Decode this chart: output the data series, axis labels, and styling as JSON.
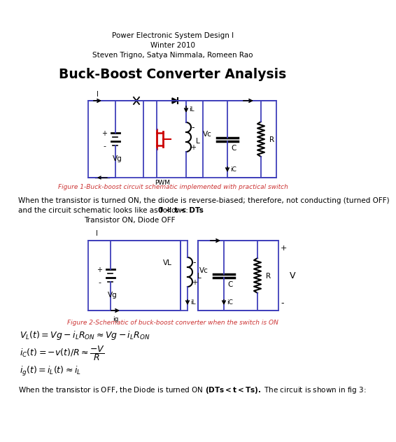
{
  "title_line1": "Power Electronic System Design I",
  "title_line2": "Winter 2010",
  "title_line3": "Steven Trigno, Satya Nimmala, Romeen Rao",
  "main_title": "Buck-Boost Converter Analysis",
  "fig1_caption": "Figure 1-Buck-boost circuit schematic implemented with practical switch",
  "fig2_caption": "Figure 2-Schematic of buck-boost converter when the switch is ON",
  "transistor_label": "Transistor ON, Diode OFF",
  "body_text1": "When the transistor is turned ON, the diode is reverse-biased; therefore, not conducting (turned OFF)",
  "body_text2_normal": "and the circuit schematic looks like as follows: ",
  "body_text2_bold": "0 < t < DTs",
  "bottom_text_normal": "When the transistor is OFF, the Diode is turned ON ",
  "bottom_text_bold": "(DTs < t < Ts).",
  "bottom_text_end": " The circuit is shown in fig 3:",
  "bg_color": "#ffffff",
  "circuit_color": "#4040bb",
  "pwm_color": "#cc0000",
  "text_color": "#000000",
  "fig_caption_color": "#cc3333",
  "fig_w": 4.74,
  "fig_h": 6.13
}
